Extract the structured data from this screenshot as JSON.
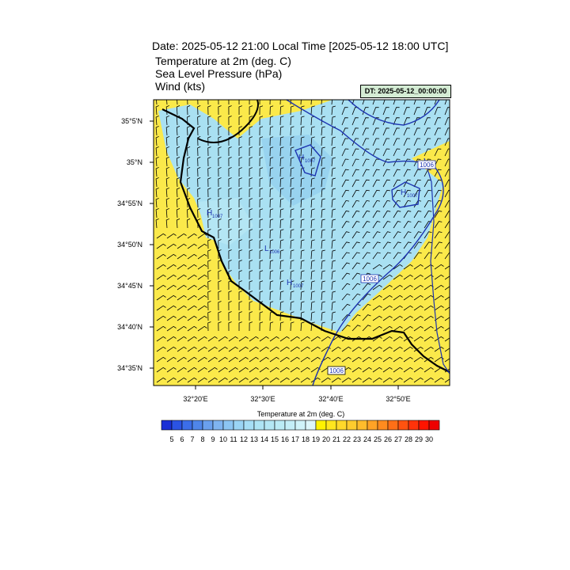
{
  "header": {
    "title": "Date: 2025-05-12  21:00 Local Time [2025-05-12  18:00 UTC]",
    "fields": [
      "Temperature at 2m   (deg. C)",
      "Sea Level Pressure   (hPa)",
      "Wind   (kts)"
    ],
    "dt_label": "DT: 2025-05-12_00:00:00"
  },
  "map": {
    "lat_labels": [
      "35°5'N",
      "35°N",
      "34°55'N",
      "34°50'N",
      "34°45'N",
      "34°40'N",
      "34°35'N"
    ],
    "lon_labels": [
      "32°20'E",
      "32°30'E",
      "32°40'E",
      "32°50'E"
    ],
    "pressure_labels": [
      "1006",
      "1006",
      "1006"
    ],
    "high_low_marks": [
      {
        "letter": "H",
        "value": "1007"
      },
      {
        "letter": "H",
        "value": "1007"
      },
      {
        "letter": "H",
        "value": "1007"
      },
      {
        "letter": "L",
        "value": "1006"
      },
      {
        "letter": "H",
        "value": "1007"
      }
    ]
  },
  "colorbar": {
    "title": "Temperature at 2m  (deg. C)",
    "labels": [
      "5",
      "6",
      "7",
      "8",
      "9",
      "10",
      "11",
      "12",
      "13",
      "14",
      "15",
      "16",
      "17",
      "18",
      "19",
      "20",
      "21",
      "22",
      "23",
      "24",
      "25",
      "26",
      "27",
      "28",
      "29",
      "30"
    ],
    "colors": [
      "#1a2fd6",
      "#2b53e3",
      "#3c6ee8",
      "#4f86ea",
      "#6aa0ee",
      "#7fb4f0",
      "#8cc5f2",
      "#9ad4f4",
      "#a6def5",
      "#aee4f4",
      "#b4e7f4",
      "#bbebf5",
      "#c4eef7",
      "#d0f3f9",
      "#ddf6fa",
      "#fff200",
      "#ffe61e",
      "#ffd92a",
      "#ffcc2e",
      "#ffbc2c",
      "#ffa326",
      "#ff8b1f",
      "#ff6f17",
      "#ff5310",
      "#ff330a",
      "#ff1400",
      "#ee0000"
    ],
    "accent_land_color": "#fbe94a",
    "accent_cool_color": "#a9e0f2",
    "contour_color": "#1c33b0"
  }
}
